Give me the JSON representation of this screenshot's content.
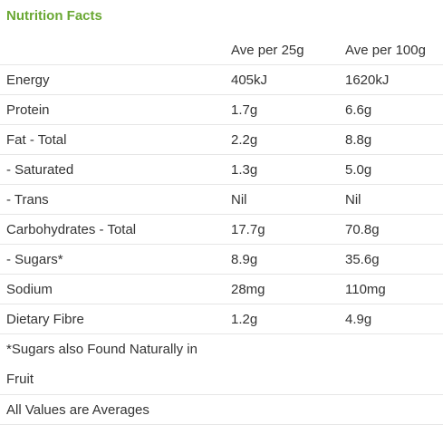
{
  "title": "Nutrition Facts",
  "header": {
    "col1": "",
    "col2": "Ave per 25g",
    "col3": "Ave per 100g"
  },
  "rows": [
    {
      "label": "Energy",
      "per25": "405kJ",
      "per100": "1620kJ"
    },
    {
      "label": "Protein",
      "per25": "1.7g",
      "per100": "6.6g"
    },
    {
      "label": "Fat - Total",
      "per25": "2.2g",
      "per100": "8.8g"
    },
    {
      "label": "- Saturated",
      "per25": "1.3g",
      "per100": "5.0g"
    },
    {
      "label": "- Trans",
      "per25": "Nil",
      "per100": "Nil"
    },
    {
      "label": "Carbohydrates - Total",
      "per25": "17.7g",
      "per100": "70.8g"
    },
    {
      "label": "- Sugars*",
      "per25": "8.9g",
      "per100": "35.6g"
    },
    {
      "label": "Sodium",
      "per25": "28mg",
      "per100": "110mg"
    },
    {
      "label": "Dietary Fibre",
      "per25": "1.2g",
      "per100": "4.9g"
    }
  ],
  "footnote": "*Sugars also Found Naturally in Fruit",
  "averages_note": "All Values are Averages",
  "colors": {
    "title": "#6aa834",
    "text": "#333333",
    "rule": "#e6e6e6"
  }
}
